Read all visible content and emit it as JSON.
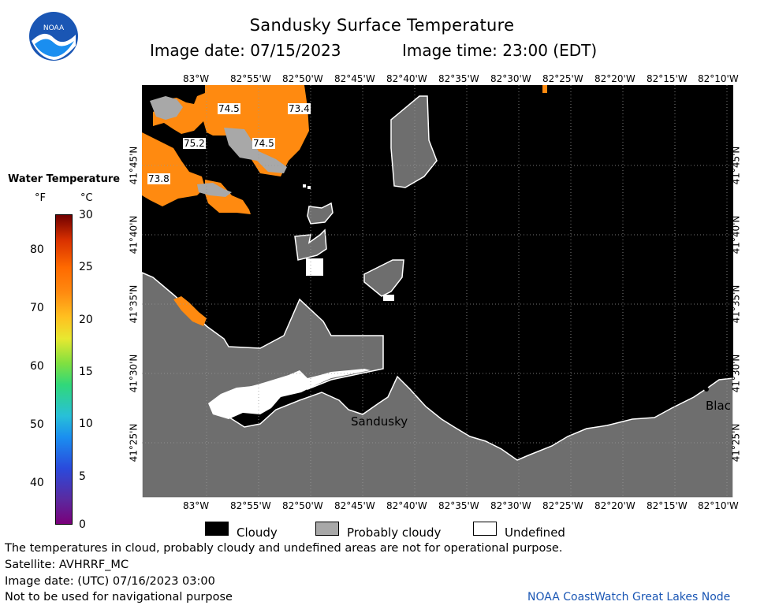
{
  "header": {
    "title": "Sandusky Surface Temperature",
    "image_date_label": "Image date: 07/15/2023",
    "image_time_label": "Image time: 23:00 (EDT)"
  },
  "logo": {
    "text": "NOAA"
  },
  "map": {
    "top_lon_ticks": [
      "83°W",
      "82°55'W",
      "82°50'W",
      "82°45'W",
      "82°40'W",
      "82°35'W",
      "82°30'W",
      "82°25'W",
      "82°20'W",
      "82°15'W",
      "82°10'W"
    ],
    "bottom_lon_ticks": [
      "83°W",
      "82°55'W",
      "82°50'W",
      "82°45'W",
      "82°40'W",
      "82°35'W",
      "82°30'W",
      "82°25'W",
      "82°20'W",
      "82°15'W",
      "82°10'W"
    ],
    "lat_ticks": [
      "41°45'N",
      "41°40'N",
      "41°35'N",
      "41°30'N",
      "41°25'N"
    ],
    "temp_labels": [
      "74.5",
      "73.4",
      "75.2",
      "74.5",
      "73.8"
    ],
    "place_labels": [
      "Sandusky",
      "Blac"
    ],
    "colors": {
      "warm_water": "#ff8a10",
      "cloudy": "#000000",
      "probably_cloudy": "#6e6e6e",
      "undefined": "#ffffff",
      "land": "#6e6e6e"
    }
  },
  "colorbar": {
    "title": "Water Temperature",
    "unit_f": "°F",
    "unit_c": "°C",
    "f_ticks": [
      "80",
      "70",
      "60",
      "50",
      "40"
    ],
    "c_ticks": [
      "30",
      "25",
      "20",
      "15",
      "10",
      "5",
      "0"
    ]
  },
  "legend": {
    "cloudy": "Cloudy",
    "probably_cloudy": "Probably cloudy",
    "undefined": "Undefined"
  },
  "footer": {
    "line1": "The temperatures in cloud, probably cloudy and undefined areas are not for operational purpose.",
    "line2": "Satellite: AVHRRF_MC",
    "line3": "Image date: (UTC) 07/16/2023  03:00",
    "line4": "Not to be used for navigational purpose",
    "credit": "NOAA CoastWatch Great Lakes Node"
  }
}
